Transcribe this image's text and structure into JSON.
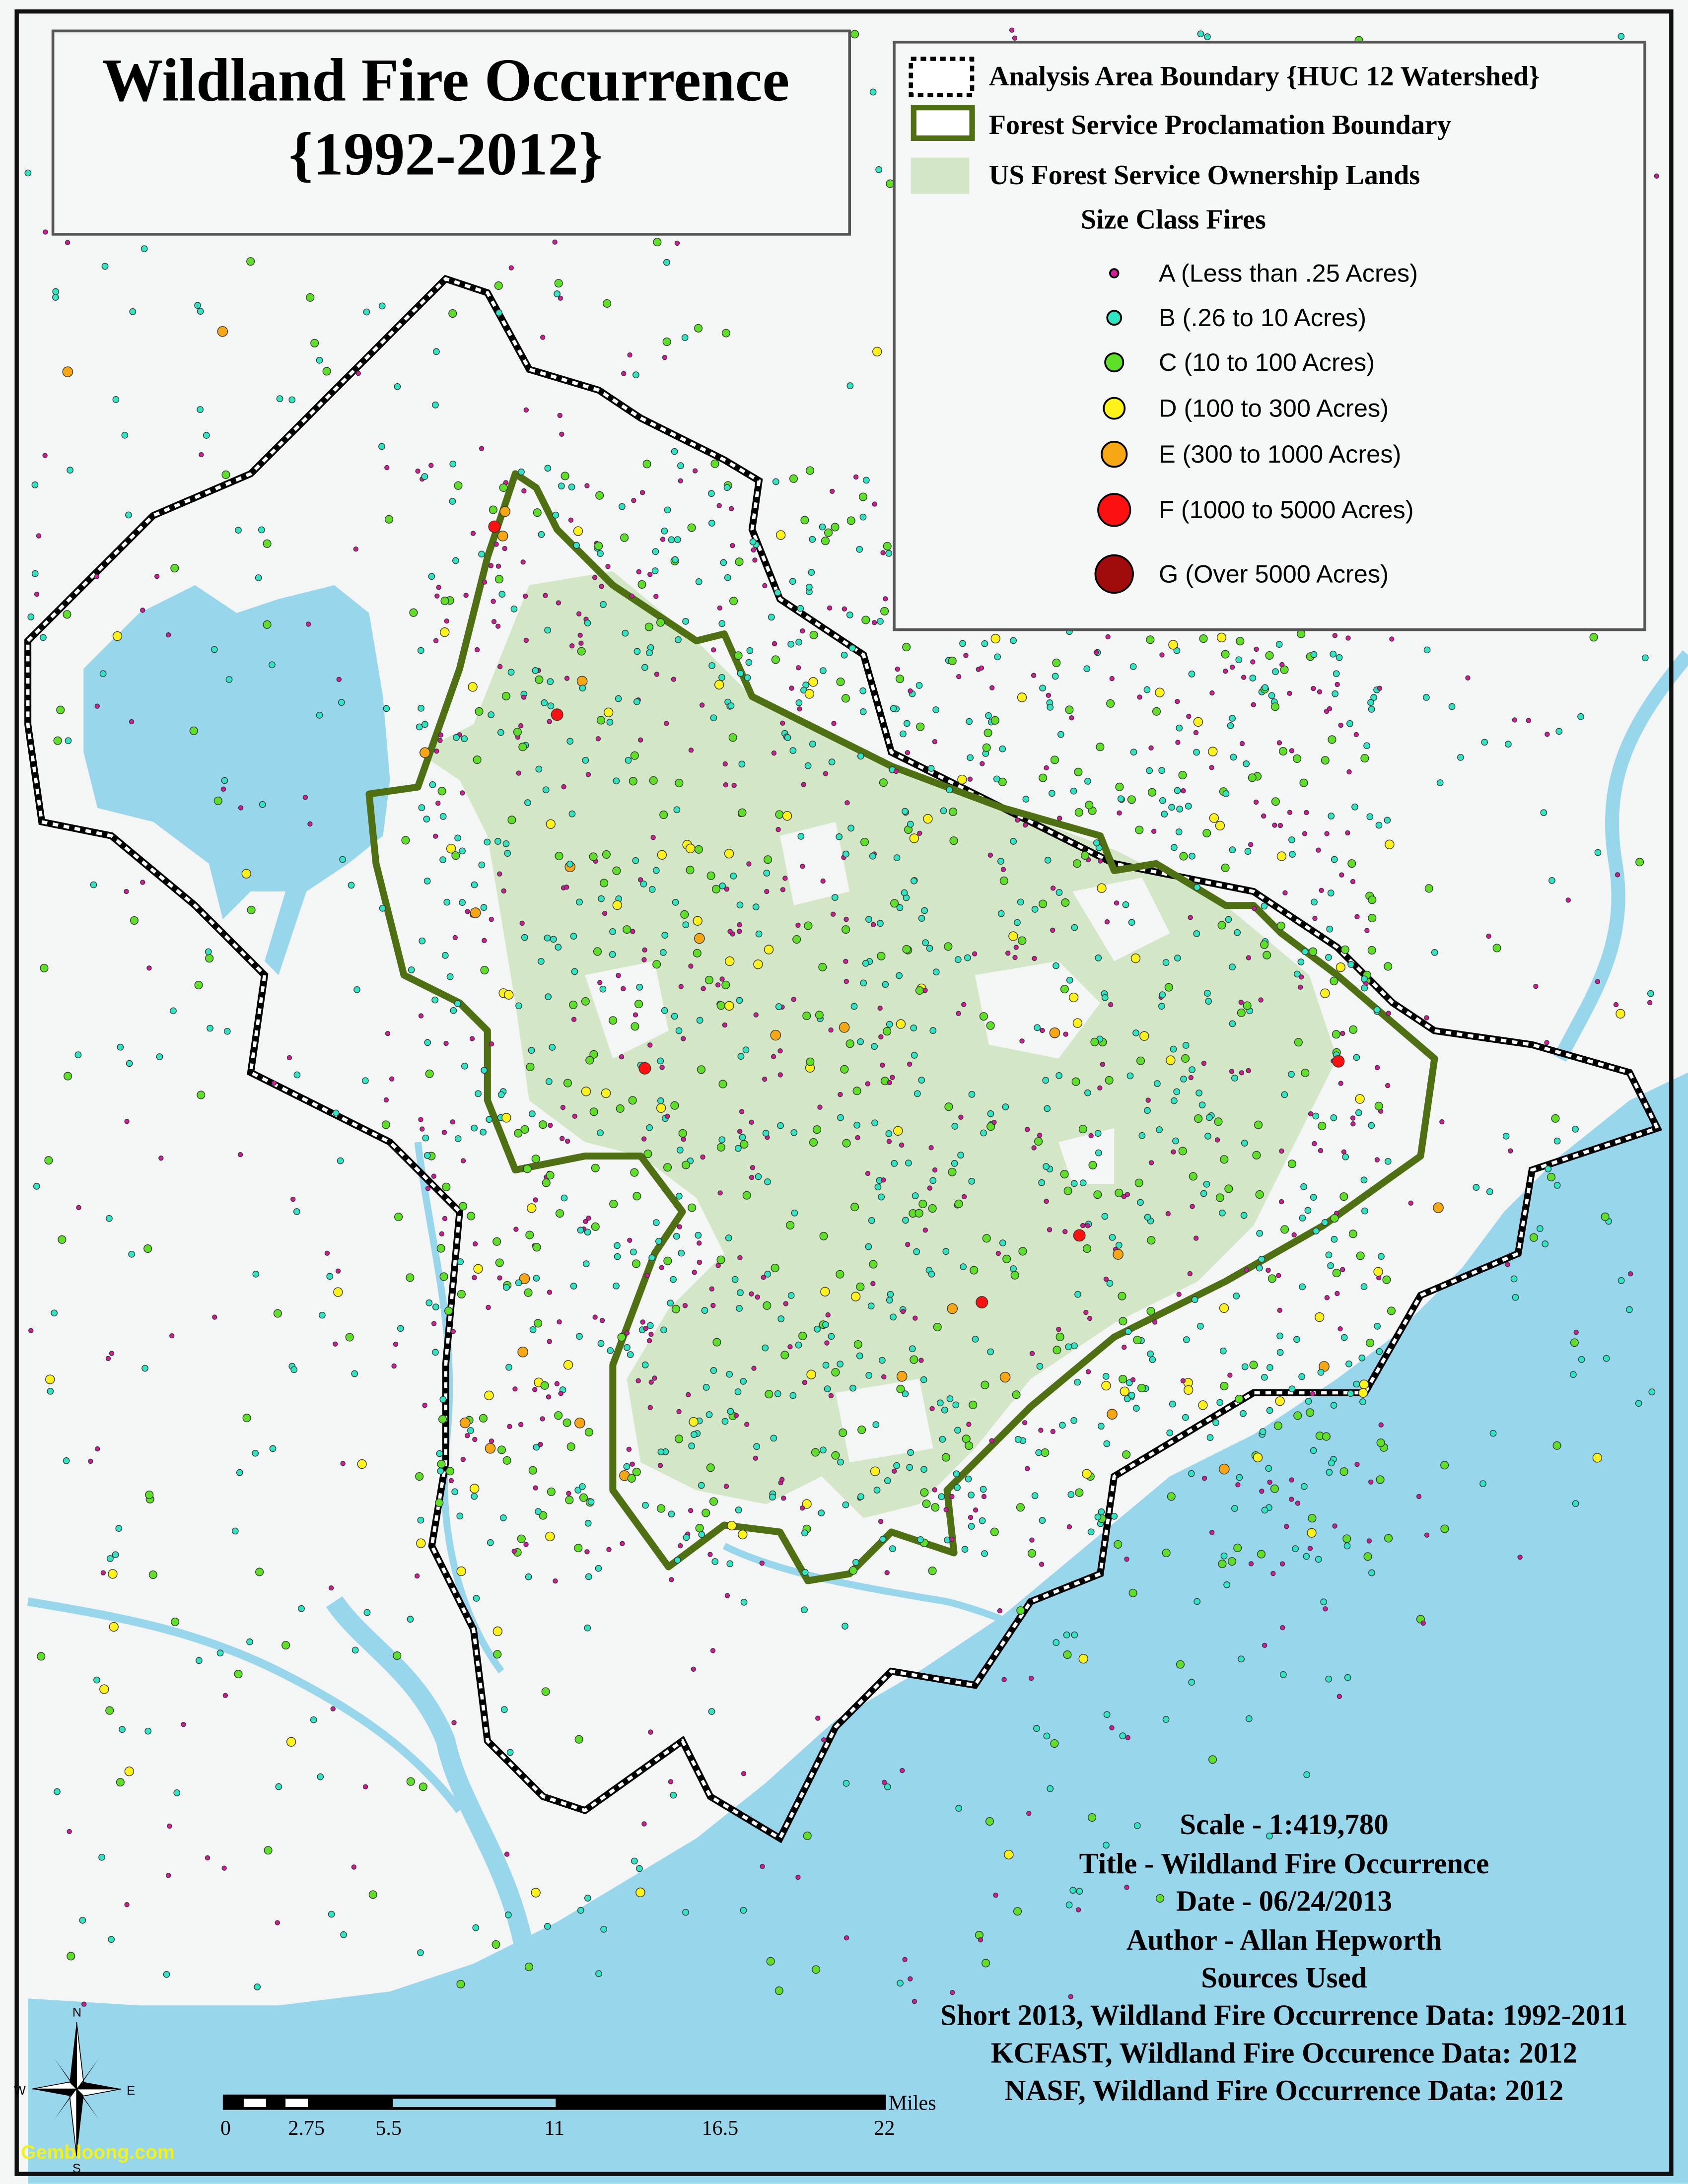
{
  "title": {
    "line1": "Wildland Fire Occurrence",
    "line2": "{1992-2012}"
  },
  "legend": {
    "boundaries": [
      {
        "label": "Analysis Area Boundary {HUC 12 Watershed}",
        "symbol": "dashed-outline"
      },
      {
        "label": "Forest Service Proclamation Boundary",
        "symbol": "green-outline",
        "color": "#4f7012"
      },
      {
        "label": "US Forest Service Ownership Lands",
        "symbol": "fill",
        "color": "#d3e6c5"
      }
    ],
    "size_class_heading": "Size Class Fires",
    "size_classes": [
      {
        "label": "A (Less than .25 Acres)",
        "color": "#d6199a"
      },
      {
        "label": "B (.26 to 10 Acres)",
        "color": "#2ee6c4"
      },
      {
        "label": "C (10 to 100 Acres)",
        "color": "#5fe028"
      },
      {
        "label": "D (100 to 300 Acres)",
        "color": "#fff21a"
      },
      {
        "label": "E (300 to 1000 Acres)",
        "color": "#f7a713"
      },
      {
        "label": "F (1000 to 5000 Acres)",
        "color": "#ff1010"
      },
      {
        "label": "G (Over 5000 Acres)",
        "color": "#a00c0c"
      }
    ]
  },
  "info": {
    "scale": "Scale - 1:419,780",
    "title": "Title - Wildland Fire Occurrence",
    "date": "Date - 06/24/2013",
    "author": "Author - Allan Hepworth",
    "sources_heading": "Sources Used",
    "sources": [
      "Short 2013, Wildland Fire Occurrence Data: 1992-2011",
      "KCFAST, Wildland Fire Occurence Data: 2012",
      "NASF, Wildland Fire Occurrence Data: 2012"
    ]
  },
  "scale_bar": {
    "unit": "Miles",
    "ticks": [
      "0",
      "2.75",
      "5.5",
      "11",
      "16.5",
      "22"
    ]
  },
  "compass": {
    "n": "N",
    "s": "S",
    "e": "E",
    "w": "W"
  },
  "watermark": "Gembloong.com",
  "colors": {
    "land": "#f4f6f6",
    "water": "#98d6eb",
    "forest_lands": "#d3e6c5",
    "proclamation_boundary": "#4f7012"
  }
}
